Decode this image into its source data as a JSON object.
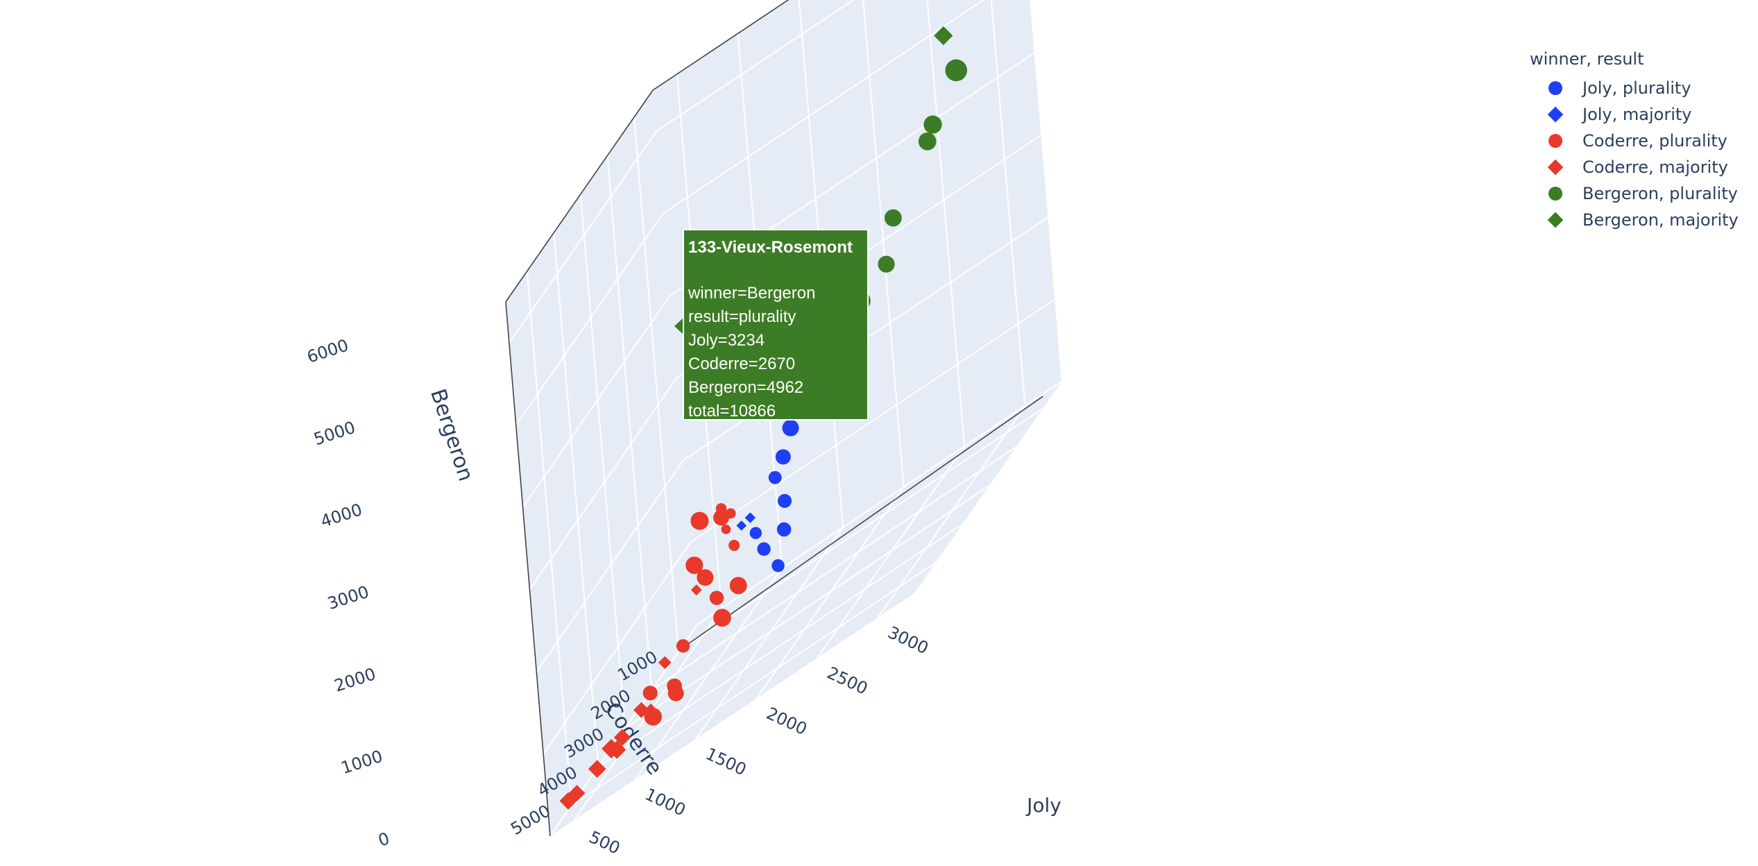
{
  "legend": {
    "title": "winner, result",
    "items": [
      {
        "label": "Joly, plurality",
        "color": "#1f3ff5",
        "symbol": "circle"
      },
      {
        "label": "Joly, majority",
        "color": "#1f3ff5",
        "symbol": "diamond"
      },
      {
        "label": "Coderre, plurality",
        "color": "#e8392a",
        "symbol": "circle"
      },
      {
        "label": "Coderre, majority",
        "color": "#e8392a",
        "symbol": "diamond"
      },
      {
        "label": "Bergeron, plurality",
        "color": "#3d7c26",
        "symbol": "circle"
      },
      {
        "label": "Bergeron, majority",
        "color": "#3d7c26",
        "symbol": "diamond"
      }
    ]
  },
  "tooltip": {
    "title": "133-Vieux-Rosemont",
    "lines": [
      "winner=Bergeron",
      "result=plurality",
      "Joly=3234",
      "Coderre=2670",
      "Bergeron=4962",
      "total=10866"
    ],
    "color": "#3d7c26"
  },
  "chart_data": {
    "type": "scatter3d",
    "xlabel": "Joly",
    "ylabel": "Coderre",
    "zlabel": "Bergeron",
    "x_ticks": [
      "500",
      "1000",
      "1500",
      "2000",
      "2500",
      "3000"
    ],
    "y_ticks": [
      "1000",
      "2000",
      "3000",
      "4000",
      "5000"
    ],
    "z_ticks": [
      "0",
      "1000",
      "2000",
      "3000",
      "4000",
      "5000",
      "6000"
    ],
    "xlim": [
      300,
      3300
    ],
    "ylim": [
      300,
      5800
    ],
    "zlim": [
      0,
      6500
    ],
    "background": "#e5ecf6",
    "series": [
      {
        "name": "Joly, plurality",
        "color": "#1f3ff5",
        "symbol": "circle",
        "points": [
          {
            "x": 1900,
            "y": 2300,
            "z": 2300,
            "total": 9000
          },
          {
            "x": 2000,
            "y": 2500,
            "z": 2100,
            "total": 8700
          },
          {
            "x": 1600,
            "y": 2200,
            "z": 2000,
            "total": 8200
          },
          {
            "x": 1500,
            "y": 2100,
            "z": 1700,
            "total": 7500
          },
          {
            "x": 1400,
            "y": 2000,
            "z": 1500,
            "total": 6400
          },
          {
            "x": 1600,
            "y": 2600,
            "z": 1300,
            "total": 6800
          },
          {
            "x": 1400,
            "y": 2800,
            "z": 1200,
            "total": 5900
          },
          {
            "x": 1600,
            "y": 2700,
            "z": 1000,
            "total": 7000
          },
          {
            "x": 1500,
            "y": 3000,
            "z": 1000,
            "total": 6600
          },
          {
            "x": 1600,
            "y": 3000,
            "z": 700,
            "total": 6300
          }
        ]
      },
      {
        "name": "Joly, majority",
        "color": "#1f3ff5",
        "symbol": "diamond",
        "points": [
          {
            "x": 1250,
            "y": 2300,
            "z": 1300,
            "total": 4500
          },
          {
            "x": 1200,
            "y": 2400,
            "z": 1300,
            "total": 4300
          }
        ]
      },
      {
        "name": "Coderre, plurality",
        "color": "#e8392a",
        "symbol": "circle",
        "points": [
          {
            "x": 1100,
            "y": 2600,
            "z": 1700,
            "total": 5200
          },
          {
            "x": 1000,
            "y": 2200,
            "z": 1500,
            "total": 7800
          },
          {
            "x": 900,
            "y": 2500,
            "z": 1700,
            "total": 8900
          },
          {
            "x": 1100,
            "y": 2300,
            "z": 1500,
            "total": 5000
          },
          {
            "x": 900,
            "y": 2800,
            "z": 1300,
            "total": 8600
          },
          {
            "x": 1000,
            "y": 2900,
            "z": 1100,
            "total": 8200
          },
          {
            "x": 1200,
            "y": 2700,
            "z": 1200,
            "total": 5400
          },
          {
            "x": 1100,
            "y": 3000,
            "z": 800,
            "total": 7000
          },
          {
            "x": 1300,
            "y": 3100,
            "z": 800,
            "total": 8500
          },
          {
            "x": 1200,
            "y": 3300,
            "z": 600,
            "total": 8800
          },
          {
            "x": 900,
            "y": 3400,
            "z": 600,
            "total": 6600
          },
          {
            "x": 900,
            "y": 3800,
            "z": 300,
            "total": 7400
          },
          {
            "x": 1000,
            "y": 4200,
            "z": 300,
            "total": 7800
          },
          {
            "x": 900,
            "y": 4600,
            "z": 300,
            "total": 8700
          },
          {
            "x": 800,
            "y": 4200,
            "z": 500,
            "total": 7200
          },
          {
            "x": 1100,
            "y": 2500,
            "z": 1400,
            "total": 4600
          }
        ]
      },
      {
        "name": "Coderre, majority",
        "color": "#e8392a",
        "symbol": "diamond",
        "points": [
          {
            "x": 700,
            "y": 3200,
            "z": 500,
            "total": 5500
          },
          {
            "x": 700,
            "y": 3800,
            "z": 200,
            "total": 5800
          },
          {
            "x": 650,
            "y": 3900,
            "z": 300,
            "total": 6800
          },
          {
            "x": 600,
            "y": 4400,
            "z": 250,
            "total": 7200
          },
          {
            "x": 500,
            "y": 4900,
            "z": 200,
            "total": 7600
          },
          {
            "x": 550,
            "y": 4400,
            "z": 150,
            "total": 7800
          },
          {
            "x": 350,
            "y": 5000,
            "z": 100,
            "total": 7000
          },
          {
            "x": 300,
            "y": 5100,
            "z": 100,
            "total": 7400
          },
          {
            "x": 600,
            "y": 4800,
            "z": 300,
            "total": 8300
          },
          {
            "x": 900,
            "y": 2800,
            "z": 1000,
            "total": 4600
          }
        ]
      },
      {
        "name": "Bergeron, plurality",
        "color": "#3d7c26",
        "symbol": "circle",
        "points": [
          {
            "x": 3234,
            "y": 2670,
            "z": 4962,
            "total": 10866
          },
          {
            "x": 3000,
            "y": 2600,
            "z": 4500,
            "total": 9000
          },
          {
            "x": 2900,
            "y": 2400,
            "z": 4300,
            "total": 8800
          },
          {
            "x": 2700,
            "y": 2900,
            "z": 3800,
            "total": 8500
          },
          {
            "x": 2500,
            "y": 2400,
            "z": 3200,
            "total": 8300
          },
          {
            "x": 2300,
            "y": 2500,
            "z": 3000,
            "total": 9700
          },
          {
            "x": 2200,
            "y": 2700,
            "z": 2900,
            "total": 8100
          },
          {
            "x": 2000,
            "y": 2300,
            "z": 2600,
            "total": 6400
          },
          {
            "x": 1900,
            "y": 2500,
            "z": 2400,
            "total": 5000
          }
        ]
      },
      {
        "name": "Bergeron, majority",
        "color": "#3d7c26",
        "symbol": "diamond",
        "points": [
          {
            "x": 3100,
            "y": 1500,
            "z": 6500,
            "total": 9000
          },
          {
            "x": 3300,
            "y": 1300,
            "z": 6000,
            "total": 8800
          },
          {
            "x": 3000,
            "y": 1900,
            "z": 5900,
            "total": 8200
          },
          {
            "x": 3000,
            "y": 2000,
            "z": 5300,
            "total": 8100
          }
        ]
      }
    ]
  }
}
